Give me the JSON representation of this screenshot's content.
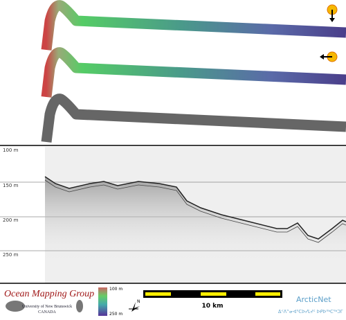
{
  "figure": {
    "depth_labels": [
      "100 m",
      "150 m",
      "200 m",
      "250 m"
    ],
    "footer": {
      "group": "Ocean Mapping Group",
      "university": "University of New Brunswick",
      "country": "CANADA",
      "color_scale": {
        "top": "100 m",
        "bottom": "250 m"
      },
      "north": "N",
      "scale_bar": "10 km",
      "partner": "ArcticNet",
      "partner_syllabics": "ᐃᑉᐱᓐᓂᐊᕐᑕᐅᓯᒪᔪᑦ ᐅᑭᐅᖅᑕᖅᑐᒥ"
    }
  }
}
